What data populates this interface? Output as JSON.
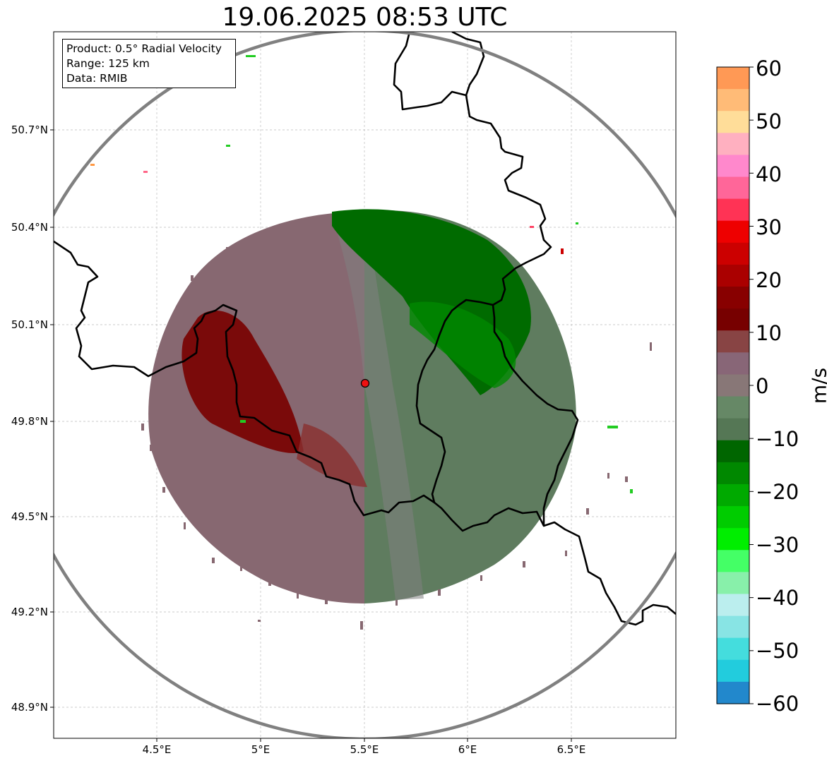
{
  "title": "19.06.2025 08:53 UTC",
  "info_box": {
    "product": "Product: 0.5° Radial Velocity",
    "range": "Range: 125 km",
    "data": "Data: RMIB"
  },
  "lat_labels": [
    "50.7°N",
    "50.4°N",
    "50.1°N",
    "49.8°N",
    "49.5°N",
    "49.2°N",
    "48.9°N"
  ],
  "lon_labels": [
    "4.5°E",
    "5°E",
    "5.5°E",
    "6°E",
    "6.5°E"
  ],
  "colorbar": {
    "unit": "m/s",
    "min": -60,
    "max": 60,
    "ticks": [
      "60",
      "50",
      "40",
      "30",
      "20",
      "10",
      "0",
      "−10",
      "−20",
      "−30",
      "−40",
      "−50",
      "−60"
    ],
    "colors": [
      "#ff9955",
      "#ffbb77",
      "#ffdd99",
      "#ffb0c0",
      "#ff88cc",
      "#ff6699",
      "#ff3355",
      "#ee0000",
      "#cc0000",
      "#aa0000",
      "#880000",
      "#770000",
      "#884444",
      "#886677",
      "#887777",
      "#668866",
      "#557755",
      "#006600",
      "#008800",
      "#00aa00",
      "#00cc00",
      "#00ee00",
      "#44ff66",
      "#88f0aa",
      "#bbeeee",
      "#88e4e4",
      "#44dddd",
      "#22ccdd",
      "#2288cc"
    ]
  },
  "radar_site": {
    "lat": 49.914,
    "lon": 5.505
  },
  "colors": {
    "approaching": "#007700",
    "receding": "#770000",
    "neutral": "#7f7f7f",
    "border": "#000000",
    "range_ring": "#808080"
  }
}
